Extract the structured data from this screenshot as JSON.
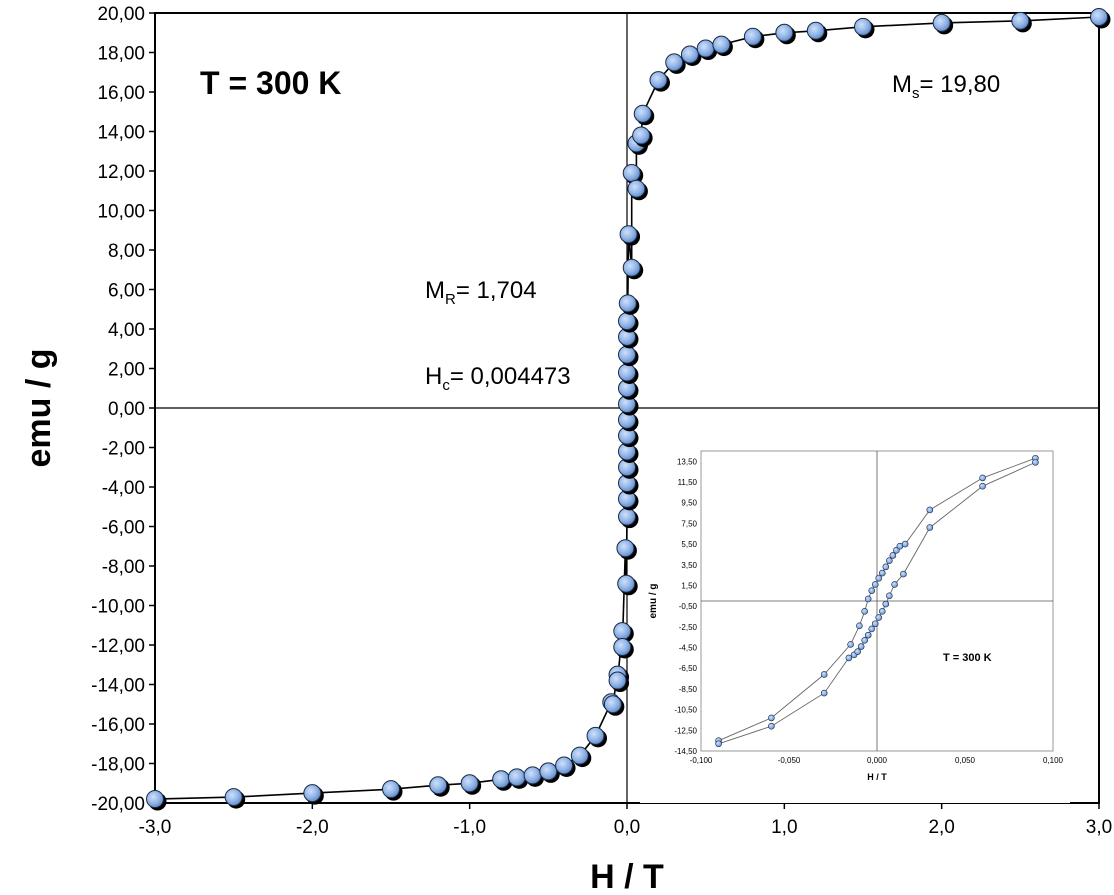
{
  "chart_data": [
    {
      "type": "scatter",
      "title": "",
      "xlabel": "H / T",
      "ylabel": "emu  / g",
      "xlim": [
        -3.0,
        3.0
      ],
      "ylim": [
        -20.0,
        20.0
      ],
      "x_ticks": [
        "-3,0",
        "-2,0",
        "-1,0",
        "0,0",
        "1,0",
        "2,0",
        "3,0"
      ],
      "y_ticks": [
        "20,00",
        "18,00",
        "16,00",
        "14,00",
        "12,00",
        "10,00",
        "8,00",
        "6,00",
        "4,00",
        "2,00",
        "0,00",
        "-2,00",
        "-4,00",
        "-6,00",
        "-8,00",
        "-10,00",
        "-12,00",
        "-14,00",
        "-16,00",
        "-18,00",
        "-20,00"
      ],
      "grid": false,
      "marker_color": "#8fb3e6",
      "line_color": "#000000",
      "annotations": {
        "temperature": "T = 300 K",
        "ms_prefix": "M",
        "ms_sub": "s",
        "ms_value": "= 19,80",
        "mr_prefix": "M",
        "mr_sub": "R",
        "mr_value": "= 1,704",
        "hc_prefix": "H",
        "hc_sub": "c",
        "hc_value": "= 0,004473"
      },
      "series": [
        {
          "x": [
            -3.0,
            -2.5,
            -2.0,
            -1.5,
            -1.2,
            -1.0,
            -0.8,
            -0.7,
            -0.6,
            -0.5,
            -0.4,
            -0.3,
            -0.2,
            -0.1,
            -0.09,
            -0.06,
            -0.06,
            -0.03,
            -0.03,
            -0.01,
            -0.005,
            0.0,
            0.0,
            0.0,
            0.0,
            0.0,
            0.0,
            0.0,
            0.0,
            0.0,
            0.0,
            0.0,
            0.0,
            0.0,
            0.005,
            0.01,
            0.03,
            0.03,
            0.06,
            0.06,
            0.09,
            0.1,
            0.2,
            0.3,
            0.4,
            0.5,
            0.6,
            0.8,
            1.0,
            1.2,
            1.5,
            2.0,
            2.5,
            3.0
          ],
          "y": [
            -19.8,
            -19.7,
            -19.5,
            -19.3,
            -19.1,
            -19.0,
            -18.8,
            -18.7,
            -18.6,
            -18.4,
            -18.1,
            -17.6,
            -16.6,
            -14.9,
            -15.0,
            -13.5,
            -13.8,
            -11.3,
            -12.1,
            -7.1,
            -8.9,
            -5.5,
            -4.6,
            -3.8,
            -3.0,
            -2.2,
            -1.4,
            -0.6,
            0.2,
            1.0,
            1.8,
            2.7,
            3.6,
            4.4,
            5.3,
            8.8,
            7.1,
            11.9,
            11.1,
            13.4,
            13.8,
            14.9,
            16.6,
            17.5,
            17.9,
            18.2,
            18.4,
            18.8,
            19.0,
            19.1,
            19.3,
            19.5,
            19.6,
            19.8
          ]
        }
      ]
    },
    {
      "type": "scatter",
      "title": "",
      "xlabel": "H / T",
      "ylabel": "emu / g",
      "xlim": [
        -0.1,
        0.1
      ],
      "ylim": [
        -14.5,
        14.5
      ],
      "x_ticks": [
        "-0,100",
        "-0,050",
        "0,000",
        "0,050",
        "0,100"
      ],
      "y_ticks": [
        "13,50",
        "11,50",
        "9,50",
        "7,50",
        "5,50",
        "3,50",
        "1,50",
        "-0,50",
        "-2,50",
        "-4,50",
        "-6,50",
        "-8,50",
        "-10,50",
        "-12,50",
        "-14,50"
      ],
      "grid": false,
      "annotations": {
        "temperature": "T = 300 K"
      },
      "series": [
        {
          "name": "",
          "x": [
            -0.09,
            -0.06,
            -0.03,
            -0.015,
            -0.01,
            -0.007,
            -0.005,
            -0.003,
            -0.001,
            0.001,
            0.003,
            0.005,
            0.007,
            0.009,
            0.011,
            0.013,
            0.016,
            0.03,
            0.06,
            0.09
          ],
          "y": [
            -13.5,
            -11.3,
            -7.1,
            -4.2,
            -2.4,
            -1.0,
            0.2,
            1.0,
            1.6,
            2.2,
            2.7,
            3.3,
            3.9,
            4.4,
            4.9,
            5.3,
            5.5,
            8.8,
            11.9,
            13.8
          ]
        },
        {
          "name": "",
          "x": [
            -0.09,
            -0.06,
            -0.03,
            -0.016,
            -0.013,
            -0.011,
            -0.009,
            -0.007,
            -0.005,
            -0.003,
            -0.001,
            0.001,
            0.003,
            0.005,
            0.007,
            0.01,
            0.015,
            0.03,
            0.06,
            0.09
          ],
          "y": [
            -13.8,
            -12.1,
            -8.9,
            -5.5,
            -5.2,
            -4.9,
            -4.4,
            -3.8,
            -3.3,
            -2.7,
            -2.2,
            -1.6,
            -1.0,
            -0.3,
            0.5,
            1.6,
            2.6,
            7.1,
            11.1,
            13.4
          ]
        }
      ]
    }
  ]
}
